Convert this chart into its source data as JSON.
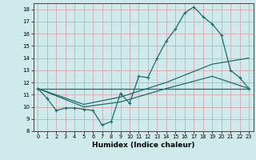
{
  "xlabel": "Humidex (Indice chaleur)",
  "xlim": [
    -0.5,
    23.5
  ],
  "ylim": [
    8,
    18.5
  ],
  "yticks": [
    8,
    9,
    10,
    11,
    12,
    13,
    14,
    15,
    16,
    17,
    18
  ],
  "xticks": [
    0,
    1,
    2,
    3,
    4,
    5,
    6,
    7,
    8,
    9,
    10,
    11,
    12,
    13,
    14,
    15,
    16,
    17,
    18,
    19,
    20,
    21,
    22,
    23
  ],
  "background_color": "#ceeaea",
  "grid_color": "#d8a8b0",
  "line_color": "#1a6e6e",
  "line1_x": [
    0,
    1,
    2,
    3,
    4,
    5,
    6,
    7,
    8,
    9,
    10,
    11,
    12,
    13,
    14,
    15,
    16,
    17,
    18,
    19,
    20,
    21,
    22,
    23
  ],
  "line1_y": [
    11.5,
    10.7,
    9.7,
    9.9,
    9.9,
    9.8,
    9.7,
    8.5,
    8.8,
    11.1,
    10.3,
    12.5,
    12.4,
    14.0,
    15.4,
    16.4,
    17.7,
    18.2,
    17.4,
    16.8,
    15.9,
    13.0,
    12.4,
    11.5
  ],
  "line2_x": [
    0,
    23
  ],
  "line2_y": [
    11.5,
    11.5
  ],
  "line3_x": [
    0,
    5,
    9,
    14,
    19,
    23
  ],
  "line3_y": [
    11.5,
    10.2,
    10.8,
    12.0,
    13.5,
    14.0
  ],
  "line4_x": [
    0,
    5,
    9,
    14,
    19,
    23
  ],
  "line4_y": [
    11.5,
    10.0,
    10.4,
    11.5,
    12.5,
    11.5
  ]
}
